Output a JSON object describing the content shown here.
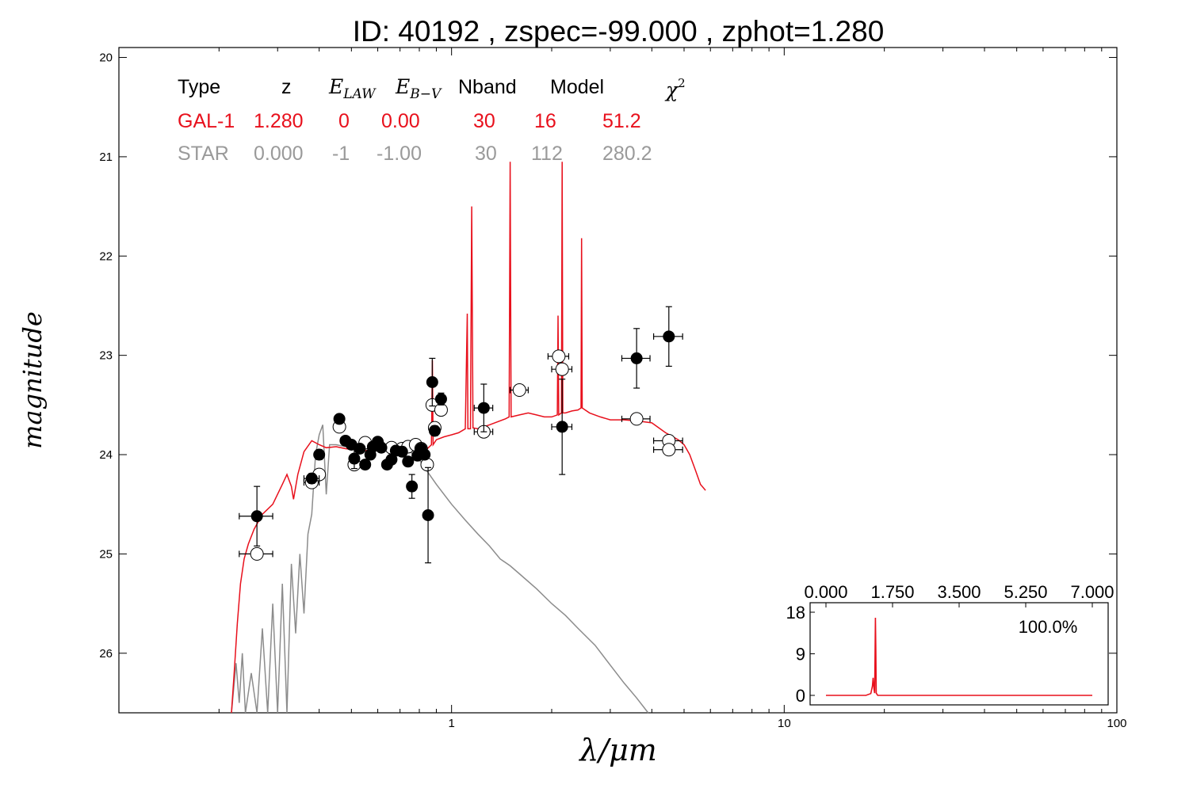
{
  "chart_data": {
    "type": "scatter",
    "title": "ID:  40192 , zspec=-99.000 , zphot=1.280",
    "xlabel": "λ/μm",
    "ylabel": "magnitude",
    "xscale": "log",
    "xlim": [
      0.1,
      100
    ],
    "ylim": [
      26.6,
      19.9
    ],
    "y_inverted": true,
    "x_ticks": [
      "1",
      "10",
      "100"
    ],
    "y_ticks": [
      "20",
      "21",
      "22",
      "23",
      "24",
      "25",
      "26"
    ],
    "grid": false,
    "colors": {
      "galaxy": "#e8101c",
      "star": "#8c8c8c",
      "observed": "#000000",
      "model_points": "#ffffff"
    },
    "fit_table": {
      "headers": [
        "Type",
        "z",
        "E",
        "LAW",
        "E",
        "B−V",
        "Nband",
        "Model",
        "χ",
        "2"
      ],
      "rows": [
        {
          "type": "GAL-1",
          "z": "1.280",
          "elaw": "0",
          "ebv": "0.00",
          "nband": "30",
          "model": "16",
          "chi2": "51.2"
        },
        {
          "type": "STAR",
          "z": "0.000",
          "elaw": "-1",
          "ebv": "-1.00",
          "nband": "30",
          "model": "112",
          "chi2": "280.2"
        }
      ]
    },
    "observed": [
      {
        "x": 0.26,
        "y": 24.62,
        "xerr": 0.03,
        "yerr": 0.3
      },
      {
        "x": 0.38,
        "y": 24.24,
        "xerr": 0.02,
        "yerr": 0.05
      },
      {
        "x": 0.4,
        "y": 24.0,
        "xerr": 0.01,
        "yerr": 0.05
      },
      {
        "x": 0.46,
        "y": 23.64,
        "xerr": 0.01,
        "yerr": 0.04
      },
      {
        "x": 0.48,
        "y": 23.86,
        "xerr": 0.01,
        "yerr": 0.04
      },
      {
        "x": 0.5,
        "y": 23.9,
        "xerr": 0.01,
        "yerr": 0.04
      },
      {
        "x": 0.51,
        "y": 24.04,
        "xerr": 0.01,
        "yerr": 0.1
      },
      {
        "x": 0.53,
        "y": 23.94,
        "xerr": 0.01,
        "yerr": 0.04
      },
      {
        "x": 0.55,
        "y": 24.1,
        "xerr": 0.01,
        "yerr": 0.04
      },
      {
        "x": 0.57,
        "y": 24.0,
        "xerr": 0.01,
        "yerr": 0.04
      },
      {
        "x": 0.58,
        "y": 23.92,
        "xerr": 0.01,
        "yerr": 0.04
      },
      {
        "x": 0.6,
        "y": 23.87,
        "xerr": 0.01,
        "yerr": 0.04
      },
      {
        "x": 0.615,
        "y": 23.93,
        "xerr": 0.01,
        "yerr": 0.04
      },
      {
        "x": 0.64,
        "y": 24.1,
        "xerr": 0.01,
        "yerr": 0.04
      },
      {
        "x": 0.66,
        "y": 24.05,
        "xerr": 0.01,
        "yerr": 0.04
      },
      {
        "x": 0.68,
        "y": 23.96,
        "xerr": 0.01,
        "yerr": 0.04
      },
      {
        "x": 0.71,
        "y": 23.97,
        "xerr": 0.01,
        "yerr": 0.04
      },
      {
        "x": 0.74,
        "y": 24.07,
        "xerr": 0.01,
        "yerr": 0.04
      },
      {
        "x": 0.76,
        "y": 24.32,
        "xerr": 0.01,
        "yerr": 0.12
      },
      {
        "x": 0.79,
        "y": 24.01,
        "xerr": 0.01,
        "yerr": 0.04
      },
      {
        "x": 0.81,
        "y": 23.94,
        "xerr": 0.01,
        "yerr": 0.04
      },
      {
        "x": 0.83,
        "y": 24.0,
        "xerr": 0.01,
        "yerr": 0.04
      },
      {
        "x": 0.85,
        "y": 24.61,
        "xerr": 0.01,
        "yerr": 0.48
      },
      {
        "x": 0.875,
        "y": 23.27,
        "xerr": 0.01,
        "yerr": 0.24
      },
      {
        "x": 0.89,
        "y": 23.76,
        "xerr": 0.01,
        "yerr": 0.05
      },
      {
        "x": 0.93,
        "y": 23.44,
        "xerr": 0.01,
        "yerr": 0.06
      },
      {
        "x": 1.25,
        "y": 23.53,
        "xerr": 0.08,
        "yerr": 0.24
      },
      {
        "x": 2.15,
        "y": 23.72,
        "xerr": 0.15,
        "yerr": 0.48
      },
      {
        "x": 3.6,
        "y": 23.03,
        "xerr": 0.35,
        "yerr": 0.3
      },
      {
        "x": 4.5,
        "y": 22.81,
        "xerr": 0.45,
        "yerr": 0.3
      }
    ],
    "model_points": [
      {
        "x": 0.26,
        "y": 25.0,
        "xerr": 0.03
      },
      {
        "x": 0.38,
        "y": 24.28,
        "xerr": 0.02
      },
      {
        "x": 0.4,
        "y": 24.2,
        "xerr": 0.01
      },
      {
        "x": 0.46,
        "y": 23.72,
        "xerr": 0.01
      },
      {
        "x": 0.51,
        "y": 24.1,
        "xerr": 0.01
      },
      {
        "x": 0.55,
        "y": 23.88,
        "xerr": 0.01
      },
      {
        "x": 0.6,
        "y": 23.9,
        "xerr": 0.01
      },
      {
        "x": 0.66,
        "y": 23.93,
        "xerr": 0.01
      },
      {
        "x": 0.71,
        "y": 23.94,
        "xerr": 0.01
      },
      {
        "x": 0.74,
        "y": 23.92,
        "xerr": 0.01
      },
      {
        "x": 0.78,
        "y": 23.9,
        "xerr": 0.01
      },
      {
        "x": 0.81,
        "y": 23.94,
        "xerr": 0.01
      },
      {
        "x": 0.845,
        "y": 24.1,
        "xerr": 0.01
      },
      {
        "x": 0.875,
        "y": 23.5,
        "xerr": 0.01
      },
      {
        "x": 0.89,
        "y": 23.73,
        "xerr": 0.01
      },
      {
        "x": 0.93,
        "y": 23.55,
        "xerr": 0.01
      },
      {
        "x": 1.25,
        "y": 23.77,
        "xerr": 0.08
      },
      {
        "x": 1.6,
        "y": 23.35,
        "xerr": 0.1
      },
      {
        "x": 2.1,
        "y": 23.01,
        "xerr": 0.15
      },
      {
        "x": 2.15,
        "y": 23.14,
        "xerr": 0.15
      },
      {
        "x": 3.6,
        "y": 23.64,
        "xerr": 0.35
      },
      {
        "x": 4.5,
        "y": 23.86,
        "xerr": 0.45
      },
      {
        "x": 4.5,
        "y": 23.95,
        "xerr": 0.45
      }
    ],
    "galaxy_sed": [
      [
        0.218,
        26.6
      ],
      [
        0.222,
        26.2
      ],
      [
        0.227,
        25.7
      ],
      [
        0.232,
        25.3
      ],
      [
        0.238,
        25.05
      ],
      [
        0.245,
        24.9
      ],
      [
        0.255,
        24.75
      ],
      [
        0.27,
        24.6
      ],
      [
        0.29,
        24.5
      ],
      [
        0.31,
        24.3
      ],
      [
        0.32,
        24.2
      ],
      [
        0.33,
        24.32
      ],
      [
        0.335,
        24.45
      ],
      [
        0.345,
        24.2
      ],
      [
        0.36,
        23.97
      ],
      [
        0.38,
        23.86
      ],
      [
        0.4,
        23.9
      ],
      [
        0.42,
        23.93
      ],
      [
        0.45,
        23.92
      ],
      [
        0.48,
        23.94
      ],
      [
        0.51,
        23.95
      ],
      [
        0.55,
        23.96
      ],
      [
        0.6,
        23.95
      ],
      [
        0.65,
        23.95
      ],
      [
        0.7,
        23.94
      ],
      [
        0.75,
        23.93
      ],
      [
        0.8,
        23.92
      ],
      [
        0.84,
        23.95
      ],
      [
        0.87,
        23.9
      ],
      [
        0.876,
        23.05
      ],
      [
        0.88,
        23.9
      ],
      [
        0.9,
        23.85
      ],
      [
        0.95,
        23.82
      ],
      [
        1.0,
        23.8
      ],
      [
        1.05,
        23.78
      ],
      [
        1.1,
        23.74
      ],
      [
        1.115,
        22.58
      ],
      [
        1.12,
        23.74
      ],
      [
        1.14,
        23.74
      ],
      [
        1.15,
        21.5
      ],
      [
        1.16,
        23.73
      ],
      [
        1.2,
        23.74
      ],
      [
        1.3,
        23.7
      ],
      [
        1.45,
        23.64
      ],
      [
        1.49,
        23.62
      ],
      [
        1.5,
        21.05
      ],
      [
        1.51,
        23.62
      ],
      [
        1.6,
        23.6
      ],
      [
        1.7,
        23.58
      ],
      [
        1.8,
        23.6
      ],
      [
        1.9,
        23.62
      ],
      [
        2.0,
        23.62
      ],
      [
        2.08,
        23.6
      ],
      [
        2.09,
        22.6
      ],
      [
        2.1,
        23.6
      ],
      [
        2.14,
        23.58
      ],
      [
        2.15,
        21.05
      ],
      [
        2.16,
        23.58
      ],
      [
        2.2,
        23.58
      ],
      [
        2.3,
        23.56
      ],
      [
        2.4,
        23.55
      ],
      [
        2.45,
        23.53
      ],
      [
        2.46,
        21.82
      ],
      [
        2.47,
        23.53
      ],
      [
        2.6,
        23.58
      ],
      [
        2.8,
        23.62
      ],
      [
        3.0,
        23.65
      ],
      [
        3.3,
        23.65
      ],
      [
        3.6,
        23.66
      ],
      [
        4.0,
        23.68
      ],
      [
        4.4,
        23.78
      ],
      [
        4.8,
        23.85
      ],
      [
        5.0,
        23.9
      ],
      [
        5.2,
        24.0
      ],
      [
        5.4,
        24.15
      ],
      [
        5.6,
        24.3
      ],
      [
        5.8,
        24.36
      ]
    ],
    "star_sed": [
      [
        0.218,
        26.6
      ],
      [
        0.225,
        26.1
      ],
      [
        0.23,
        26.5
      ],
      [
        0.235,
        26.0
      ],
      [
        0.24,
        26.6
      ],
      [
        0.25,
        26.2
      ],
      [
        0.26,
        26.6
      ],
      [
        0.27,
        25.75
      ],
      [
        0.28,
        26.6
      ],
      [
        0.29,
        25.5
      ],
      [
        0.3,
        26.6
      ],
      [
        0.31,
        25.3
      ],
      [
        0.32,
        26.6
      ],
      [
        0.33,
        25.1
      ],
      [
        0.34,
        25.8
      ],
      [
        0.35,
        25.0
      ],
      [
        0.36,
        25.6
      ],
      [
        0.37,
        24.8
      ],
      [
        0.38,
        24.6
      ],
      [
        0.39,
        24.0
      ],
      [
        0.4,
        23.8
      ],
      [
        0.41,
        23.7
      ],
      [
        0.42,
        24.4
      ],
      [
        0.43,
        23.9
      ],
      [
        0.45,
        23.9
      ],
      [
        0.48,
        23.92
      ],
      [
        0.52,
        23.93
      ],
      [
        0.56,
        23.92
      ],
      [
        0.6,
        23.9
      ],
      [
        0.65,
        23.9
      ],
      [
        0.7,
        23.92
      ],
      [
        0.75,
        23.97
      ],
      [
        0.8,
        24.05
      ],
      [
        0.85,
        24.18
      ],
      [
        0.9,
        24.3
      ],
      [
        1.0,
        24.5
      ],
      [
        1.1,
        24.66
      ],
      [
        1.2,
        24.8
      ],
      [
        1.3,
        24.92
      ],
      [
        1.4,
        25.05
      ],
      [
        1.5,
        25.12
      ],
      [
        1.6,
        25.2
      ],
      [
        1.8,
        25.35
      ],
      [
        2.0,
        25.5
      ],
      [
        2.2,
        25.62
      ],
      [
        2.4,
        25.75
      ],
      [
        2.7,
        25.92
      ],
      [
        3.0,
        26.12
      ],
      [
        3.3,
        26.3
      ],
      [
        3.6,
        26.45
      ],
      [
        3.9,
        26.6
      ]
    ],
    "inset": {
      "x_ticks": [
        "0.000",
        "1.750",
        "3.500",
        "5.250",
        "7.000"
      ],
      "y_ticks": [
        "0",
        "9",
        "18"
      ],
      "xlim": [
        0,
        7
      ],
      "ylim": [
        0,
        18
      ],
      "label": "100.0%",
      "pdz": [
        [
          0.0,
          0
        ],
        [
          1.05,
          0
        ],
        [
          1.18,
          0.4
        ],
        [
          1.22,
          2.0
        ],
        [
          1.24,
          3.8
        ],
        [
          1.26,
          1.5
        ],
        [
          1.28,
          0.5
        ],
        [
          1.29,
          8
        ],
        [
          1.3,
          16.8
        ],
        [
          1.31,
          10
        ],
        [
          1.32,
          0.5
        ],
        [
          1.36,
          0
        ],
        [
          7.0,
          0
        ]
      ]
    }
  }
}
